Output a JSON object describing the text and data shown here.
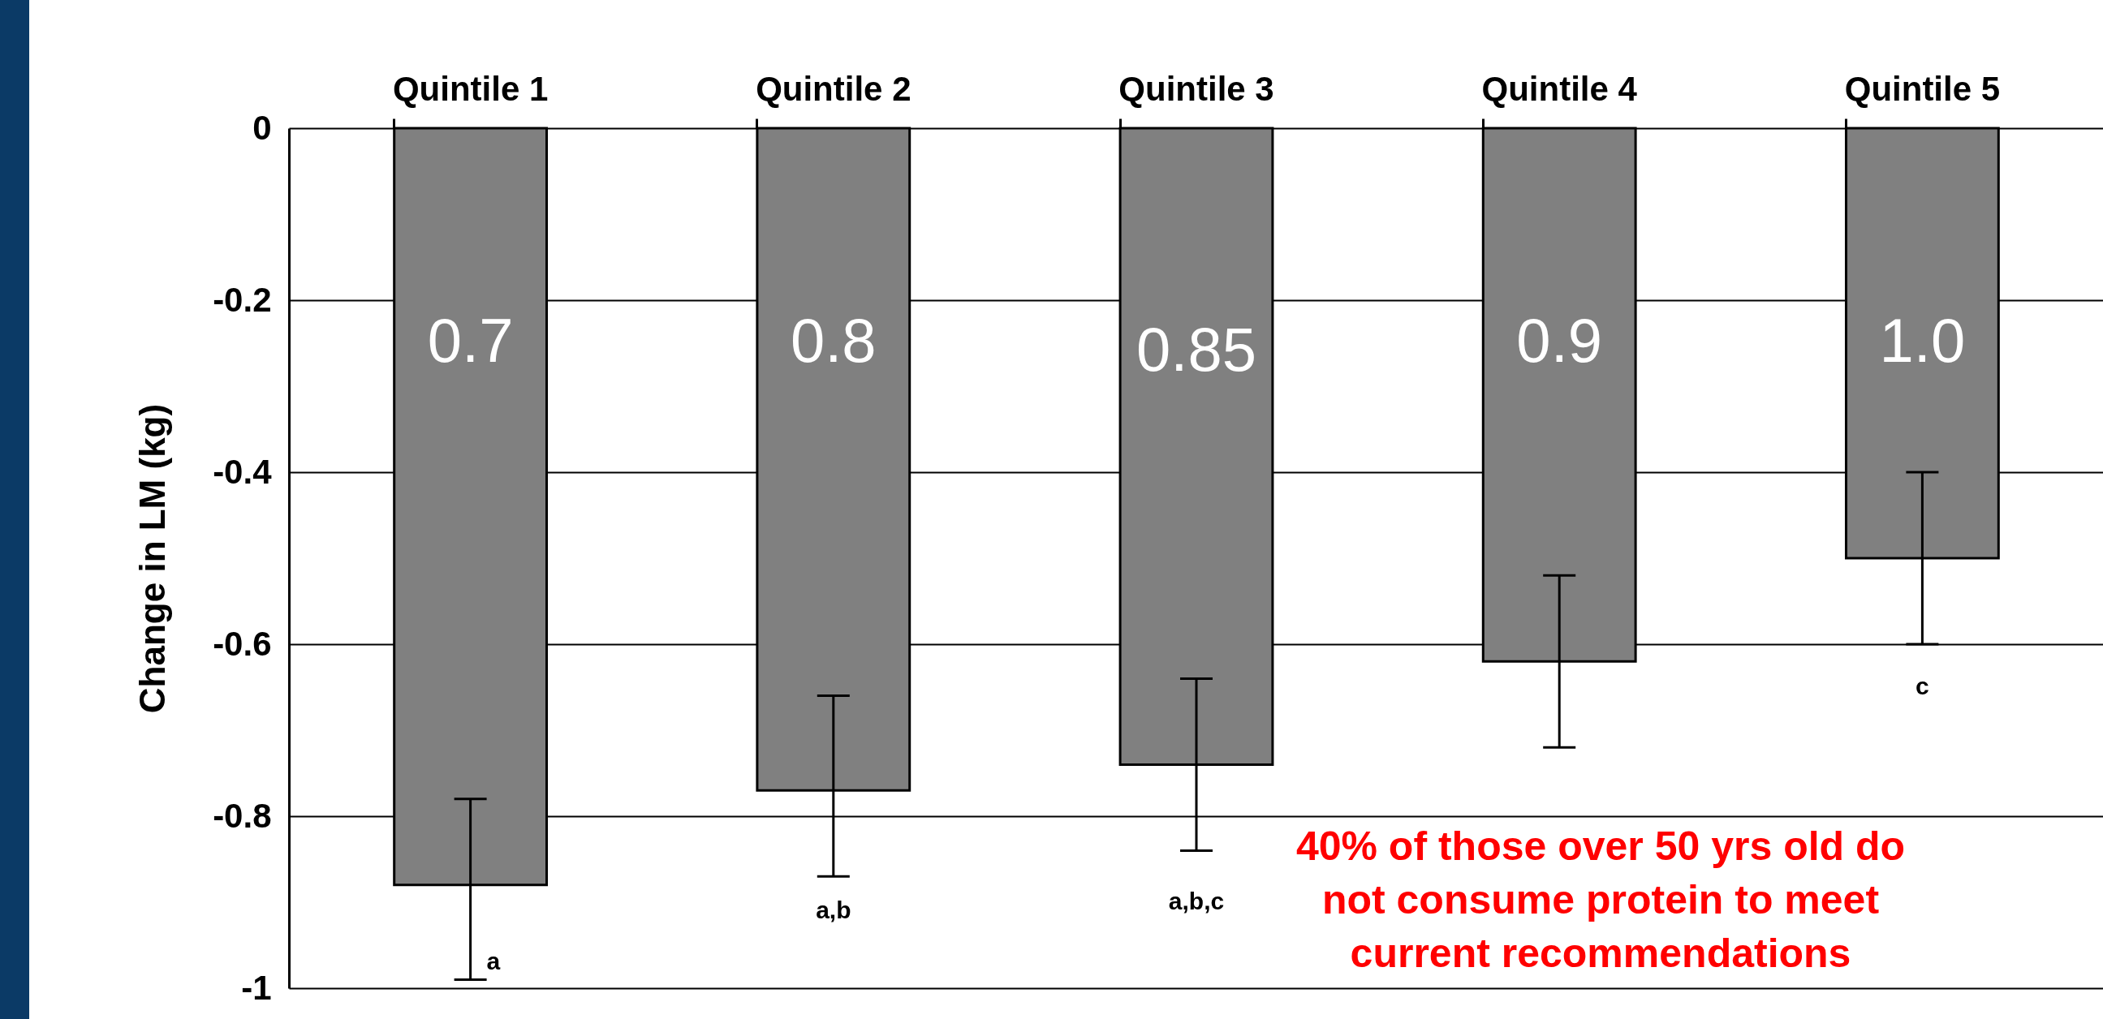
{
  "chart_data": {
    "type": "bar",
    "ylabel": "Change in LM (kg)",
    "categories": [
      "Quintile 1",
      "Quintile 2",
      "Quintile 3",
      "Quintile 4",
      "Quintile 5"
    ],
    "series": [
      {
        "color": "#808080",
        "values": [
          -0.88,
          -0.77,
          -0.74,
          -0.62,
          -0.5
        ],
        "errors": [
          [
            -0.99,
            -0.78
          ],
          [
            -0.87,
            -0.66
          ],
          [
            -0.84,
            -0.64
          ],
          [
            -0.72,
            -0.52
          ],
          [
            -0.6,
            -0.4
          ]
        ]
      }
    ],
    "ylim": [
      -1,
      0
    ],
    "yticks": [
      {
        "value": -1,
        "label": "-1"
      },
      {
        "value": -0.8,
        "label": "-0.8"
      },
      {
        "value": -0.6,
        "label": "-0.6"
      },
      {
        "value": -0.4,
        "label": "-0.4"
      },
      {
        "value": -0.2,
        "label": "-0.2"
      },
      {
        "value": 0,
        "label": "0"
      }
    ],
    "grid": "y",
    "annotations": [
      "0.7",
      "0.8",
      "0.85",
      "0.9",
      "1.0",
      "a",
      "a,b",
      "a,b,c",
      "c",
      "40% of those over 50 yrs old do\nnot consume protein to meet\ncurrent recommendations"
    ]
  }
}
